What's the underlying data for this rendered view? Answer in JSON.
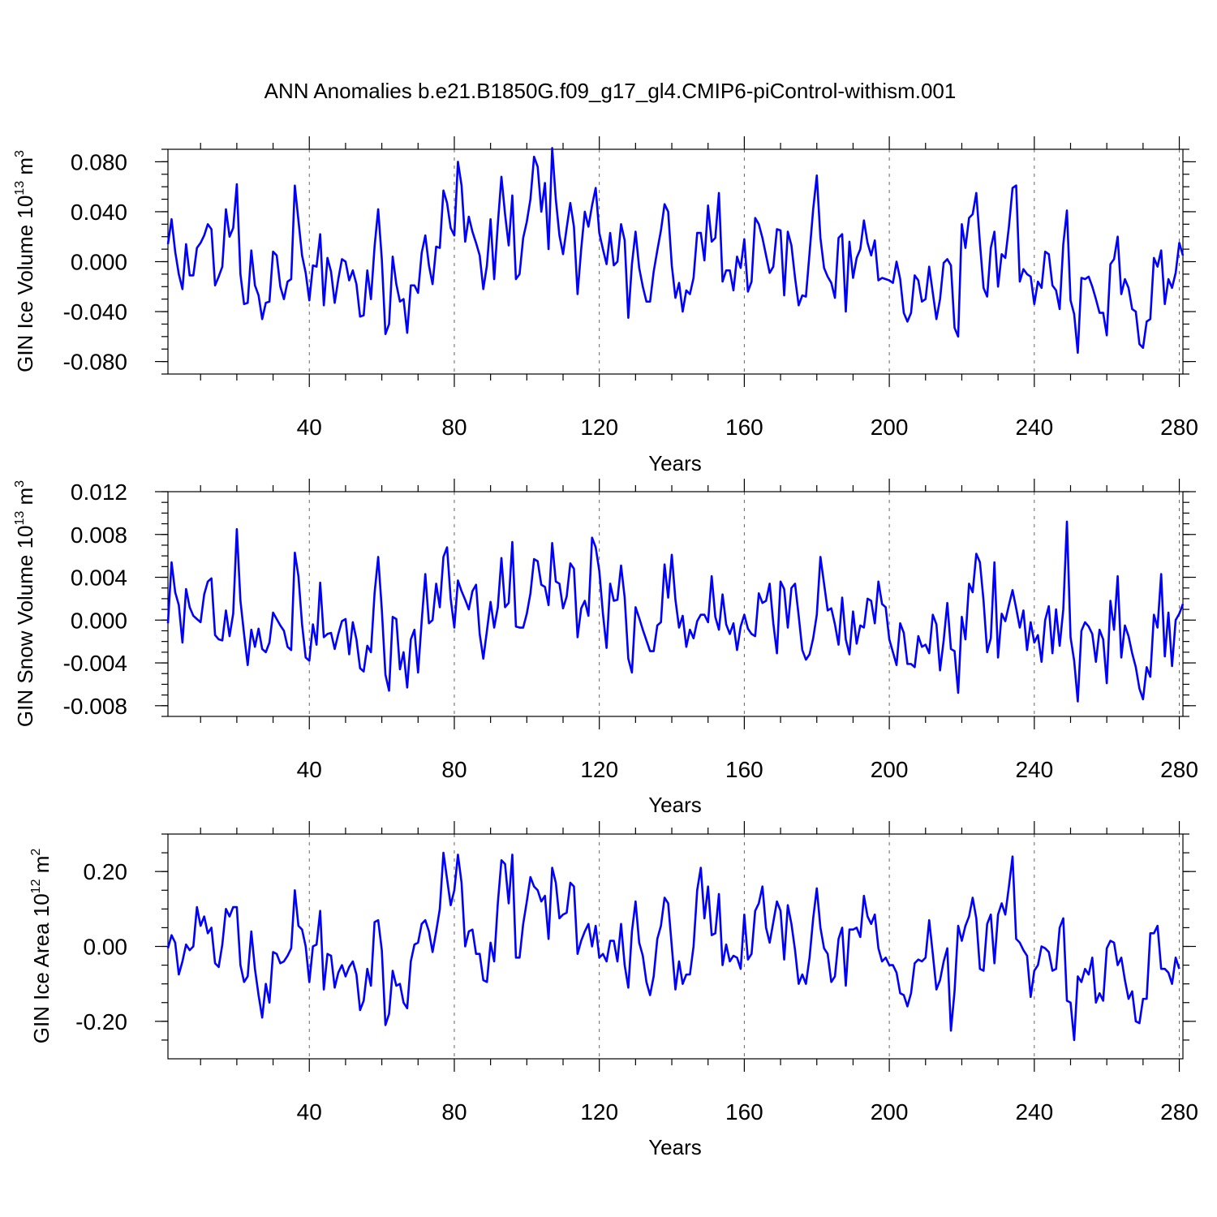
{
  "figure_title": "ANN Anomalies b.e21.B1850G.f09_g17_gl4.CMIP6-piControl-withism.001",
  "chart_data": [
    {
      "type": "line",
      "title": "ANN Anomalies b.e21.B1850G.f09_g17_gl4.CMIP6-piControl-withism.001",
      "xlabel": "Years",
      "ylabel": {
        "prefix": "GIN Ice Volume 10",
        "exponent": "13",
        "unit": " m",
        "unit_exponent": "3"
      },
      "xlim": [
        1,
        281
      ],
      "ylim": [
        -0.09,
        0.09
      ],
      "xticks": [
        40,
        80,
        120,
        160,
        200,
        240,
        280
      ],
      "yticks": [
        -0.08,
        -0.04,
        0.0,
        0.04,
        0.08
      ],
      "ytick_labels": [
        "-0.080",
        "-0.040",
        "0.000",
        "0.040",
        "0.080"
      ],
      "grid": "vertical dashed at major x ticks",
      "series": [
        {
          "name": "GIN Ice Volume",
          "color": "#0000ff",
          "x_start": 1,
          "x_step": 1,
          "values": [
            0.014,
            0.034,
            0.008,
            -0.01,
            -0.022,
            0.014,
            -0.011,
            -0.011,
            0.011,
            0.015,
            0.021,
            0.03,
            0.026,
            -0.019,
            -0.012,
            -0.004,
            0.042,
            0.02,
            0.027,
            0.062,
            -0.01,
            -0.034,
            -0.033,
            0.009,
            -0.019,
            -0.027,
            -0.046,
            -0.033,
            -0.032,
            0.008,
            0.005,
            -0.02,
            -0.03,
            -0.016,
            -0.014,
            0.061,
            0.033,
            0.005,
            -0.009,
            -0.031,
            -0.003,
            -0.004,
            0.022,
            -0.035,
            0.003,
            -0.008,
            -0.033,
            -0.014,
            0.002,
            0.0,
            -0.015,
            -0.007,
            -0.018,
            -0.044,
            -0.043,
            -0.007,
            -0.03,
            0.012,
            0.042,
            0.002,
            -0.058,
            -0.05,
            0.004,
            -0.018,
            -0.032,
            -0.03,
            -0.057,
            -0.019,
            -0.019,
            -0.025,
            0.007,
            0.021,
            -0.003,
            -0.018,
            0.012,
            0.011,
            0.057,
            0.047,
            0.027,
            0.021,
            0.08,
            0.061,
            0.016,
            0.036,
            0.024,
            0.015,
            0.005,
            -0.022,
            -0.003,
            0.034,
            -0.014,
            0.03,
            0.068,
            0.038,
            0.013,
            0.053,
            -0.014,
            -0.01,
            0.019,
            0.032,
            0.05,
            0.084,
            0.076,
            0.04,
            0.063,
            0.01,
            0.091,
            0.05,
            0.021,
            0.006,
            0.027,
            0.047,
            0.028,
            -0.026,
            0.01,
            0.04,
            0.028,
            0.045,
            0.059,
            0.023,
            0.01,
            -0.002,
            0.023,
            -0.003,
            0.0,
            0.03,
            0.017,
            -0.045,
            -0.002,
            0.024,
            -0.005,
            -0.02,
            -0.032,
            -0.032,
            -0.008,
            0.009,
            0.025,
            0.046,
            0.04,
            -0.003,
            -0.029,
            -0.017,
            -0.04,
            -0.023,
            -0.026,
            -0.013,
            0.023,
            0.023,
            0.001,
            0.045,
            0.016,
            0.019,
            0.055,
            -0.016,
            -0.007,
            -0.007,
            -0.023,
            0.004,
            -0.005,
            0.018,
            -0.024,
            -0.016,
            0.035,
            0.03,
            0.019,
            0.005,
            -0.009,
            -0.004,
            0.026,
            0.025,
            -0.027,
            0.024,
            0.013,
            -0.013,
            -0.035,
            -0.027,
            -0.028,
            0.007,
            0.042,
            0.069,
            0.019,
            -0.005,
            -0.012,
            -0.017,
            -0.029,
            0.019,
            0.022,
            -0.04,
            0.016,
            -0.013,
            0.003,
            0.01,
            0.033,
            0.015,
            0.005,
            0.017,
            -0.015,
            -0.013,
            -0.014,
            -0.015,
            -0.017,
            0.0,
            -0.014,
            -0.041,
            -0.048,
            -0.041,
            -0.011,
            -0.015,
            -0.032,
            -0.03,
            -0.004,
            -0.025,
            -0.046,
            -0.03,
            -0.001,
            0.002,
            -0.003,
            -0.053,
            -0.06,
            0.03,
            0.011,
            0.035,
            0.038,
            0.055,
            0.015,
            -0.021,
            -0.028,
            0.011,
            0.024,
            -0.02,
            0.006,
            0.003,
            0.028,
            0.059,
            0.061,
            -0.016,
            -0.006,
            -0.01,
            -0.012,
            -0.034,
            -0.016,
            -0.021,
            0.008,
            0.006,
            -0.019,
            -0.023,
            -0.038,
            0.014,
            0.041,
            -0.031,
            -0.042,
            -0.073,
            -0.013,
            -0.014,
            -0.012,
            -0.02,
            -0.03,
            -0.041,
            -0.041,
            -0.059,
            -0.002,
            0.002,
            0.02,
            -0.026,
            -0.014,
            -0.021,
            -0.038,
            -0.04,
            -0.066,
            -0.069,
            -0.048,
            -0.046,
            0.003,
            -0.004,
            0.009,
            -0.034,
            -0.014,
            -0.021,
            -0.009,
            0.015,
            0.005
          ]
        }
      ]
    },
    {
      "type": "line",
      "xlabel": "Years",
      "ylabel": {
        "prefix": "GIN Snow Volume 10",
        "exponent": "13",
        "unit": " m",
        "unit_exponent": "3"
      },
      "xlim": [
        1,
        281
      ],
      "ylim": [
        -0.009,
        0.012
      ],
      "xticks": [
        40,
        80,
        120,
        160,
        200,
        240,
        280
      ],
      "yticks": [
        -0.008,
        -0.004,
        0.0,
        0.004,
        0.008,
        0.012
      ],
      "ytick_labels": [
        "-0.008",
        "-0.004",
        "0.000",
        "0.004",
        "0.008",
        "0.012"
      ],
      "grid": "vertical dashed at major x ticks",
      "series": [
        {
          "name": "GIN Snow Volume",
          "color": "#0000ff",
          "x_start": 1,
          "x_step": 1,
          "values": [
            -0.0003,
            0.0054,
            0.0026,
            0.0014,
            -0.0021,
            0.0029,
            0.0012,
            0.0004,
            0.0001,
            -0.0002,
            0.0024,
            0.0036,
            0.0039,
            -0.0014,
            -0.0018,
            -0.0019,
            0.0009,
            -0.0015,
            0.0006,
            0.0085,
            0.0018,
            -0.0013,
            -0.0042,
            -0.0009,
            -0.0025,
            -0.0008,
            -0.0027,
            -0.003,
            -0.0021,
            0.0007,
            0.0001,
            -0.0005,
            -0.001,
            -0.0025,
            -0.0028,
            0.0063,
            0.0041,
            -0.0004,
            -0.0035,
            -0.0038,
            -0.0004,
            -0.0023,
            0.0035,
            -0.0016,
            -0.0013,
            -0.0012,
            -0.0027,
            -0.0013,
            -0.0001,
            0.0001,
            -0.0032,
            -0.0002,
            -0.0018,
            -0.0045,
            -0.0048,
            -0.0024,
            -0.003,
            0.0025,
            0.0059,
            0.001,
            -0.0051,
            -0.0066,
            0.0003,
            0.0001,
            -0.0046,
            -0.003,
            -0.0063,
            -0.0018,
            -0.0009,
            -0.0049,
            -0.0001,
            0.0043,
            -0.0003,
            0.0,
            0.0034,
            0.0012,
            0.0059,
            0.0068,
            0.002,
            -0.0007,
            0.0037,
            0.0027,
            0.0019,
            0.001,
            0.0027,
            0.0033,
            -0.0013,
            -0.0036,
            -0.001,
            0.0017,
            -0.0007,
            0.0012,
            0.0058,
            0.0012,
            0.0016,
            0.0073,
            -0.0006,
            -0.0007,
            -0.0007,
            0.0006,
            0.0025,
            0.0057,
            0.0055,
            0.0033,
            0.0031,
            0.0014,
            0.0072,
            0.0036,
            0.0034,
            0.0011,
            0.0022,
            0.0053,
            0.0048,
            -0.0016,
            0.0011,
            0.0018,
            0.0004,
            0.0077,
            0.0068,
            0.0046,
            0.0006,
            -0.0026,
            0.0034,
            0.0018,
            0.0019,
            0.0051,
            0.0021,
            -0.0036,
            -0.0049,
            0.0012,
            0.0002,
            -0.0009,
            -0.0019,
            -0.0029,
            -0.0029,
            -0.0005,
            -0.0002,
            0.0052,
            0.0021,
            0.0061,
            0.0019,
            -0.0007,
            0.0004,
            -0.0025,
            -0.0009,
            -0.0017,
            -0.0001,
            0.0005,
            0.0005,
            -0.0002,
            0.0041,
            0.0003,
            -0.0009,
            0.0024,
            -0.0004,
            -0.0013,
            -0.0003,
            -0.0028,
            -0.0006,
            0.0005,
            -0.0008,
            -0.0013,
            -0.0015,
            0.0025,
            0.0016,
            0.0018,
            0.0034,
            -0.0003,
            -0.0031,
            0.0036,
            0.0029,
            -0.0007,
            0.003,
            0.0034,
            0.0004,
            -0.0028,
            -0.0037,
            -0.0032,
            -0.0017,
            0.0005,
            0.0059,
            0.0034,
            0.0009,
            0.0011,
            -0.0004,
            -0.0023,
            0.0021,
            -0.0018,
            -0.0032,
            0.0008,
            -0.0022,
            -0.0005,
            -0.0007,
            0.002,
            0.0018,
            -0.0003,
            0.0036,
            0.0015,
            0.0012,
            -0.0018,
            -0.003,
            -0.0042,
            -0.0003,
            -0.0012,
            -0.0041,
            -0.0041,
            -0.0044,
            -0.0015,
            -0.0025,
            -0.0023,
            -0.0031,
            0.0005,
            -0.0004,
            -0.0047,
            -0.0019,
            0.0016,
            -0.0027,
            -0.0029,
            -0.0068,
            0.0003,
            -0.0018,
            0.0034,
            0.0026,
            0.0062,
            0.0054,
            0.0018,
            -0.003,
            -0.0017,
            0.0054,
            -0.0035,
            0.0006,
            -0.0001,
            0.0014,
            0.0028,
            0.0011,
            -0.0007,
            0.0009,
            -0.0028,
            -0.0002,
            -0.0021,
            -0.0014,
            -0.0039,
            0.0,
            0.0013,
            -0.0031,
            0.001,
            -0.0024,
            0.001,
            0.0092,
            -0.0016,
            -0.0038,
            -0.0076,
            -0.001,
            -0.0002,
            -0.0006,
            -0.0013,
            -0.0039,
            -0.0009,
            -0.0018,
            -0.0059,
            0.0018,
            -0.0009,
            0.0041,
            -0.0035,
            -0.0005,
            -0.0015,
            -0.0031,
            -0.0044,
            -0.0064,
            -0.0074,
            -0.0044,
            -0.0053,
            0.0005,
            -0.0007,
            0.0043,
            -0.0034,
            0.0007,
            -0.0043,
            0.0,
            0.0006,
            0.0015
          ]
        }
      ]
    },
    {
      "type": "line",
      "xlabel": "Years",
      "ylabel": {
        "prefix": "GIN Ice Area 10",
        "exponent": "12",
        "unit": " m",
        "unit_exponent": "2"
      },
      "xlim": [
        1,
        281
      ],
      "ylim": [
        -0.3,
        0.3
      ],
      "xticks": [
        40,
        80,
        120,
        160,
        200,
        240,
        280
      ],
      "yticks": [
        -0.2,
        0.0,
        0.2
      ],
      "ytick_labels": [
        "-0.20",
        "0.00",
        "0.20"
      ],
      "grid": "vertical dashed at major x ticks",
      "series": [
        {
          "name": "GIN Ice Area",
          "color": "#0000ff",
          "x_start": 1,
          "x_step": 1,
          "values": [
            -0.005,
            0.03,
            0.01,
            -0.075,
            -0.04,
            0.005,
            -0.01,
            0.0,
            0.105,
            0.055,
            0.08,
            0.035,
            0.05,
            -0.045,
            -0.055,
            0.005,
            0.1,
            0.08,
            0.105,
            0.105,
            -0.05,
            -0.095,
            -0.08,
            0.04,
            -0.06,
            -0.13,
            -0.19,
            -0.1,
            -0.15,
            -0.015,
            -0.02,
            -0.045,
            -0.04,
            -0.025,
            -0.005,
            0.15,
            0.055,
            0.045,
            0.0,
            -0.095,
            0.0,
            0.005,
            0.095,
            -0.115,
            -0.02,
            -0.025,
            -0.11,
            -0.07,
            -0.05,
            -0.08,
            -0.055,
            -0.04,
            -0.075,
            -0.17,
            -0.145,
            -0.06,
            -0.105,
            0.065,
            0.07,
            -0.01,
            -0.21,
            -0.18,
            -0.065,
            -0.105,
            -0.1,
            -0.15,
            -0.165,
            -0.04,
            0.005,
            0.01,
            0.06,
            0.07,
            0.04,
            -0.015,
            0.04,
            0.1,
            0.25,
            0.18,
            0.11,
            0.15,
            0.245,
            0.17,
            0.0,
            0.04,
            0.045,
            -0.02,
            -0.02,
            -0.09,
            -0.095,
            0.01,
            -0.04,
            0.115,
            0.23,
            0.22,
            0.115,
            0.245,
            -0.03,
            -0.03,
            0.06,
            0.12,
            0.185,
            0.16,
            0.15,
            0.12,
            0.135,
            0.02,
            0.21,
            0.17,
            0.075,
            0.085,
            0.09,
            0.17,
            0.16,
            -0.02,
            0.015,
            0.04,
            0.06,
            0.0,
            0.055,
            -0.03,
            -0.02,
            -0.04,
            0.015,
            0.015,
            -0.04,
            0.06,
            -0.05,
            -0.11,
            0.04,
            0.12,
            0.01,
            -0.025,
            -0.095,
            -0.13,
            -0.08,
            0.02,
            0.055,
            0.13,
            0.115,
            0.0,
            -0.115,
            -0.04,
            -0.1,
            -0.075,
            -0.075,
            0.0,
            0.15,
            0.21,
            0.075,
            0.16,
            0.03,
            0.035,
            0.14,
            -0.05,
            0.005,
            -0.04,
            -0.025,
            -0.03,
            -0.06,
            0.085,
            -0.035,
            -0.02,
            0.095,
            0.115,
            0.16,
            0.05,
            0.01,
            0.065,
            0.12,
            0.095,
            -0.035,
            0.11,
            0.06,
            -0.01,
            -0.1,
            -0.075,
            -0.1,
            -0.03,
            0.075,
            0.155,
            0.05,
            -0.005,
            -0.02,
            -0.095,
            -0.08,
            0.02,
            0.05,
            -0.105,
            0.045,
            0.045,
            0.05,
            0.025,
            0.135,
            0.08,
            0.06,
            0.085,
            -0.005,
            -0.04,
            -0.03,
            -0.05,
            -0.05,
            -0.07,
            -0.125,
            -0.13,
            -0.16,
            -0.125,
            -0.045,
            -0.035,
            -0.04,
            -0.03,
            0.07,
            -0.02,
            -0.115,
            -0.09,
            -0.04,
            -0.005,
            -0.225,
            -0.12,
            0.055,
            0.015,
            0.055,
            0.08,
            0.13,
            0.075,
            -0.06,
            -0.065,
            0.06,
            0.085,
            -0.045,
            0.085,
            0.115,
            0.085,
            0.16,
            0.24,
            0.02,
            0.01,
            -0.01,
            -0.025,
            -0.135,
            -0.065,
            -0.05,
            0.0,
            -0.005,
            -0.015,
            -0.065,
            -0.06,
            0.05,
            0.075,
            -0.145,
            -0.15,
            -0.25,
            -0.08,
            -0.095,
            -0.06,
            -0.075,
            -0.03,
            -0.15,
            -0.125,
            -0.145,
            -0.005,
            0.015,
            0.01,
            -0.05,
            -0.03,
            -0.09,
            -0.14,
            -0.12,
            -0.2,
            -0.205,
            -0.14,
            -0.14,
            0.035,
            0.035,
            0.055,
            -0.06,
            -0.06,
            -0.07,
            -0.1,
            -0.03,
            -0.06
          ]
        }
      ]
    }
  ]
}
